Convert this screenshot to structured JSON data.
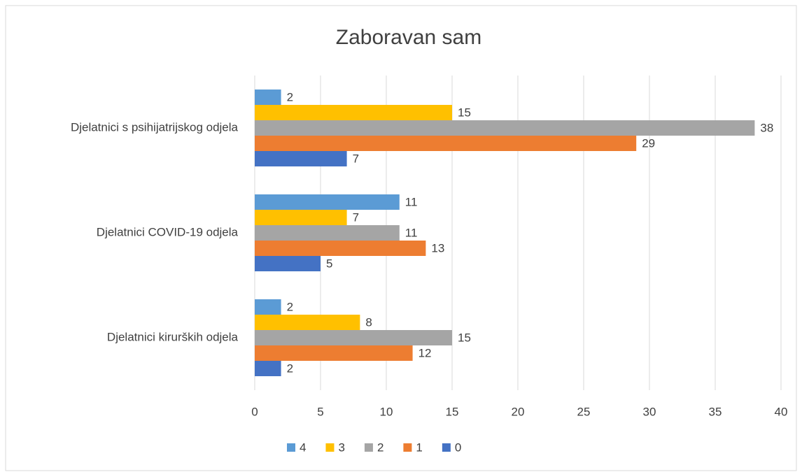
{
  "chart_data": {
    "type": "bar",
    "orientation": "horizontal",
    "title": "Zaboravan sam",
    "categories": [
      "Djelatnici kirurških odjela",
      "Djelatnici COVID-19 odjela",
      "Djelatnici s psihijatrijskog odjela"
    ],
    "series": [
      {
        "name": "0",
        "color": "#4472c4",
        "values": [
          2,
          5,
          7
        ]
      },
      {
        "name": "1",
        "color": "#ed7d31",
        "values": [
          12,
          13,
          29
        ]
      },
      {
        "name": "2",
        "color": "#a5a5a5",
        "values": [
          15,
          11,
          38
        ]
      },
      {
        "name": "3",
        "color": "#ffc000",
        "values": [
          8,
          7,
          15
        ]
      },
      {
        "name": "4",
        "color": "#5b9bd5",
        "values": [
          2,
          11,
          2
        ]
      }
    ],
    "xlim": [
      0,
      40
    ],
    "xticks": [
      0,
      5,
      10,
      15,
      20,
      25,
      30,
      35,
      40
    ],
    "grid": true,
    "legend": "bottom"
  }
}
